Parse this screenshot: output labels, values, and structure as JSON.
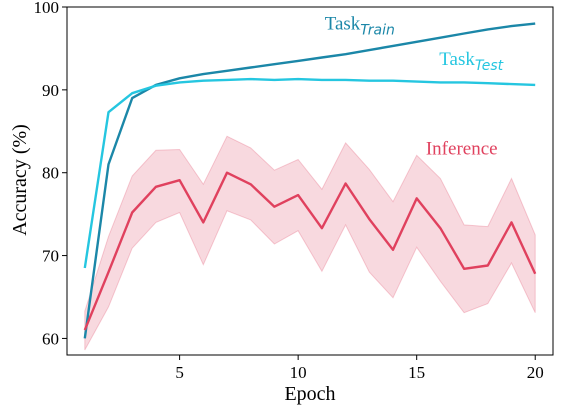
{
  "chart_data": {
    "type": "line",
    "title": "",
    "xlabel": "Epoch",
    "ylabel": "Accuracy (%)",
    "xlim": [
      0.25,
      20.75
    ],
    "ylim": [
      58,
      100
    ],
    "xticks": [
      5,
      10,
      15,
      20
    ],
    "yticks": [
      60,
      70,
      80,
      90,
      100
    ],
    "grid": false,
    "legend": "none",
    "series": [
      {
        "key": "train",
        "name_main": "Task",
        "name_sub": "Train",
        "color": "#1b87a8",
        "x": [
          1,
          2,
          3,
          4,
          5,
          6,
          7,
          8,
          9,
          10,
          11,
          12,
          13,
          14,
          15,
          16,
          17,
          18,
          19,
          20
        ],
        "y": [
          60.0,
          81.0,
          89.0,
          90.6,
          91.4,
          91.9,
          92.3,
          92.7,
          93.1,
          93.5,
          93.9,
          94.3,
          94.8,
          95.3,
          95.8,
          96.3,
          96.8,
          97.3,
          97.7,
          98.0
        ],
        "band": false
      },
      {
        "key": "test",
        "name_main": "Task",
        "name_sub": "Test",
        "color": "#25c6e0",
        "x": [
          1,
          2,
          3,
          4,
          5,
          6,
          7,
          8,
          9,
          10,
          11,
          12,
          13,
          14,
          15,
          16,
          17,
          18,
          19,
          20
        ],
        "y": [
          68.5,
          87.3,
          89.6,
          90.5,
          90.9,
          91.1,
          91.2,
          91.3,
          91.2,
          91.3,
          91.2,
          91.2,
          91.1,
          91.1,
          91.0,
          90.9,
          90.9,
          90.8,
          90.7,
          90.6
        ],
        "band": false
      },
      {
        "key": "inference",
        "name": "Inference",
        "color": "#e0415e",
        "band_color": "#f2b9c4",
        "x": [
          1,
          2,
          3,
          4,
          5,
          6,
          7,
          8,
          9,
          10,
          11,
          12,
          13,
          14,
          15,
          16,
          17,
          18,
          19,
          20
        ],
        "y": [
          61.0,
          68.0,
          75.2,
          78.3,
          79.1,
          74.0,
          80.0,
          78.6,
          75.9,
          77.3,
          73.3,
          78.7,
          74.4,
          70.7,
          76.9,
          73.3,
          68.4,
          68.8,
          74.0,
          67.8
        ],
        "lower": [
          58.6,
          63.8,
          70.9,
          74.0,
          75.2,
          68.9,
          75.4,
          74.3,
          71.4,
          73.0,
          68.1,
          73.7,
          68.0,
          64.9,
          71.0,
          66.9,
          63.1,
          64.2,
          69.1,
          63.1
        ],
        "upper": [
          63.3,
          72.3,
          79.6,
          82.7,
          82.8,
          78.6,
          84.4,
          83.0,
          80.3,
          81.6,
          78.0,
          83.6,
          80.4,
          76.5,
          82.1,
          79.3,
          73.7,
          73.5,
          79.3,
          72.5
        ],
        "band": true
      }
    ]
  }
}
